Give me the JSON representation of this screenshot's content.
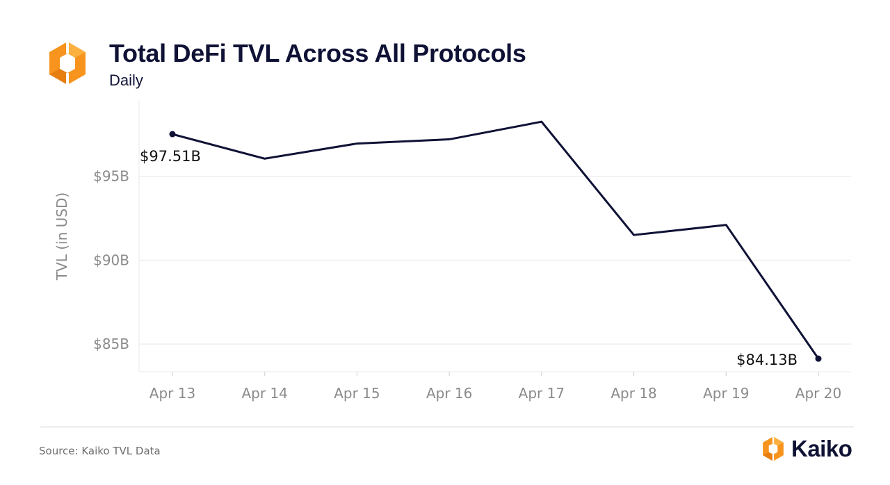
{
  "header": {
    "title": "Total DeFi TVL Across All Protocols",
    "subtitle": "Daily"
  },
  "chart_data": {
    "type": "line",
    "title": "Total DeFi TVL Across All Protocols",
    "subtitle": "Daily",
    "xlabel": "",
    "ylabel": "TVL (in USD)",
    "categories": [
      "Apr 13",
      "Apr 14",
      "Apr 15",
      "Apr 16",
      "Apr 17",
      "Apr 18",
      "Apr 19",
      "Apr 20"
    ],
    "series": [
      {
        "name": "Total DeFi TVL",
        "values": [
          97.51,
          96.05,
          96.95,
          97.2,
          98.25,
          91.5,
          92.1,
          84.13
        ],
        "color": "#0f1235"
      }
    ],
    "yticks": [
      85,
      90,
      95
    ],
    "ytick_labels": [
      "$85B",
      "$90B",
      "$95B"
    ],
    "ylim": [
      83.35,
      99.5
    ],
    "grid": true,
    "annotations": [
      {
        "category": "Apr 13",
        "label": "$97.51B"
      },
      {
        "category": "Apr 20",
        "label": "$84.13B"
      }
    ]
  },
  "footer": {
    "source": "Source: Kaiko TVL Data",
    "brand": "Kaiko"
  },
  "colors": {
    "brand_orange": "#f7941d",
    "brand_orange_light": "#fbb040",
    "navy": "#0f1235",
    "gridline": "#e8e8e8",
    "tick_text": "#8a8a8a"
  }
}
